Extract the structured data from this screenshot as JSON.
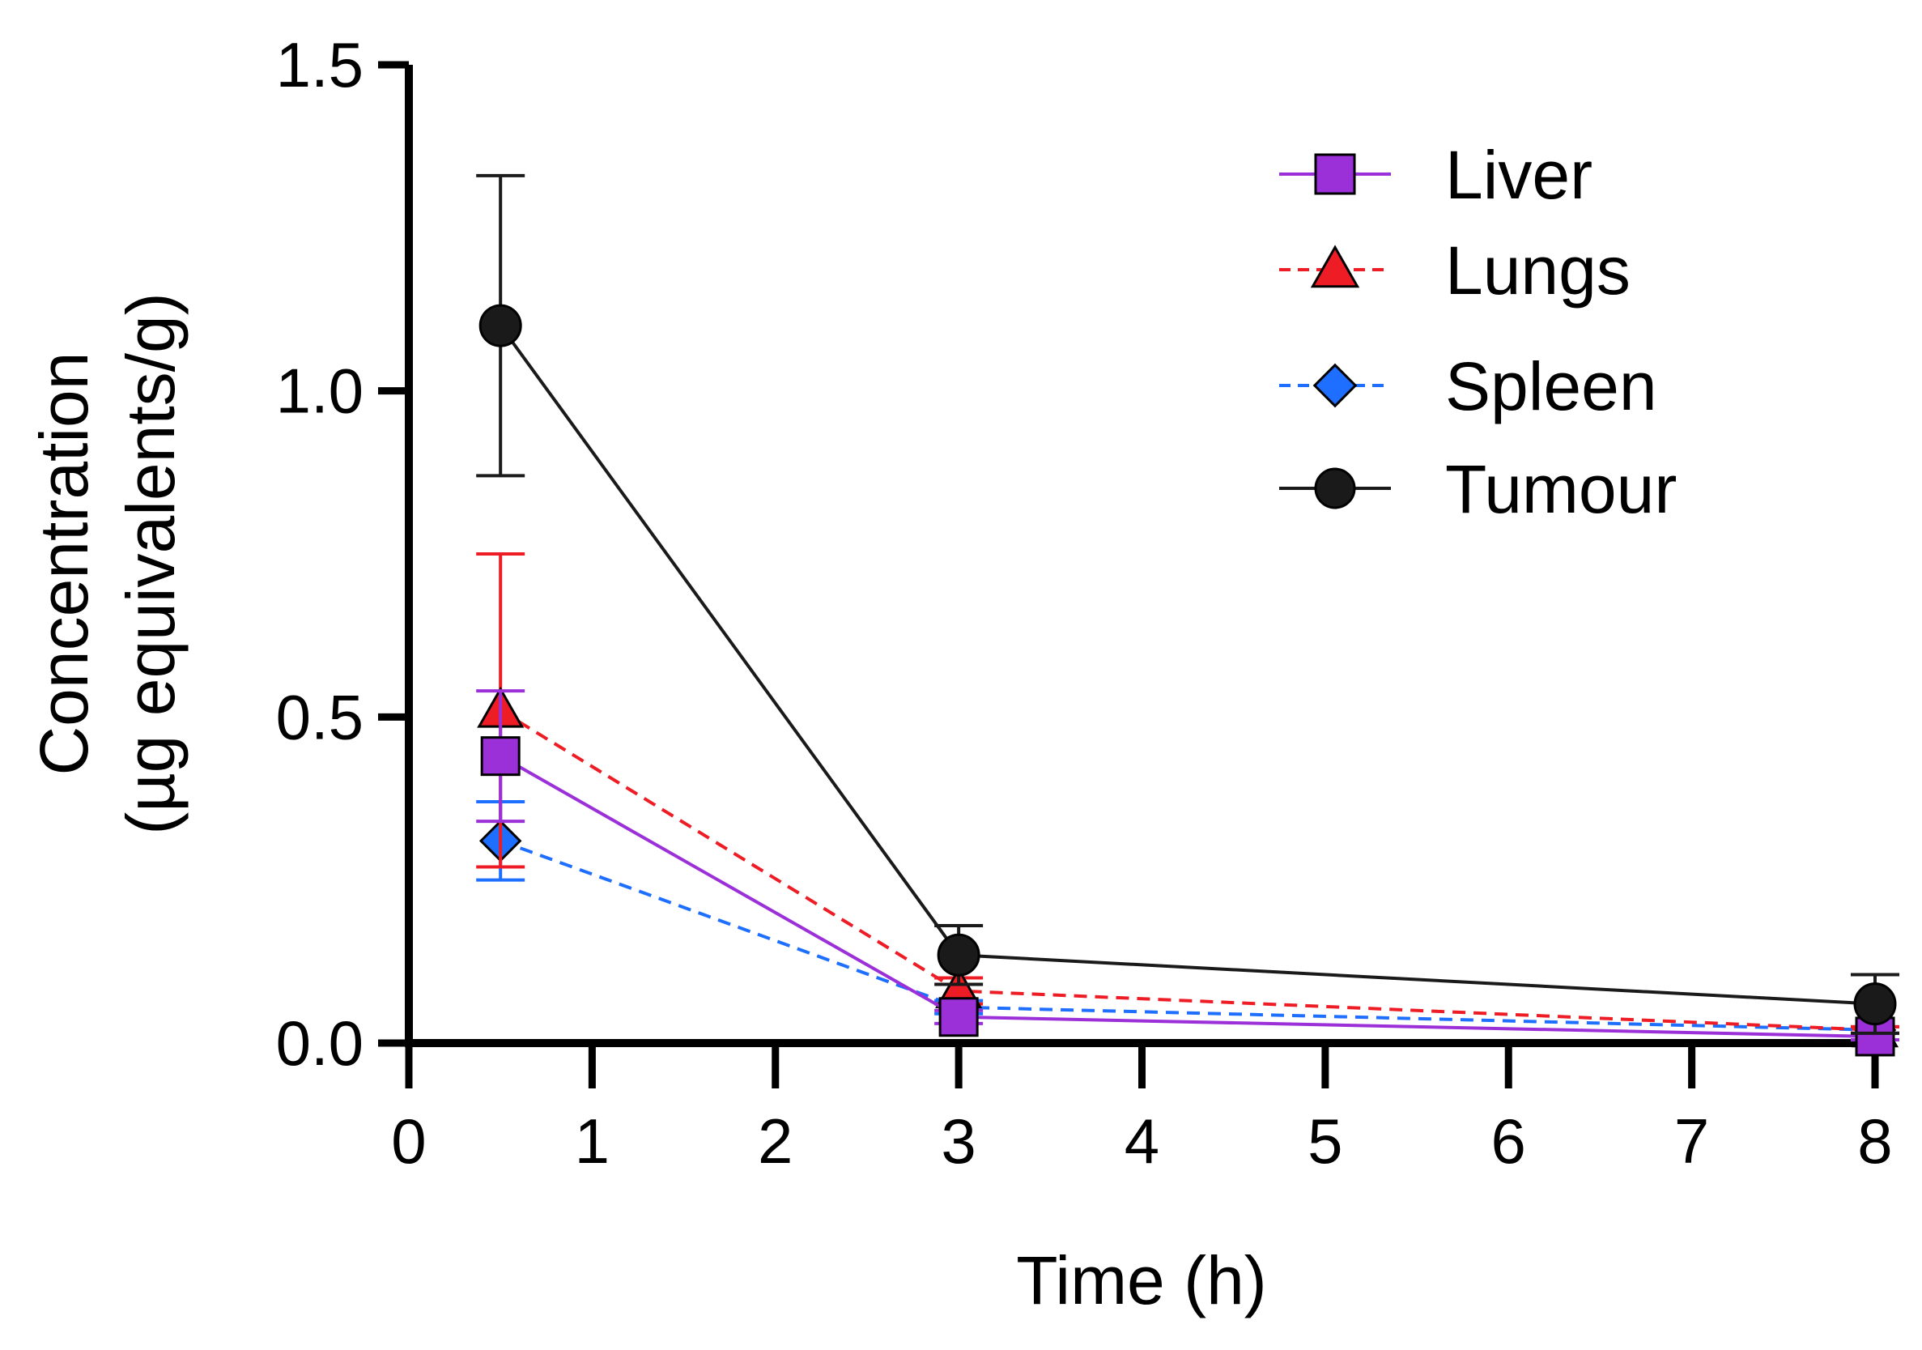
{
  "chart_data": {
    "type": "line",
    "title": "",
    "xlabel": "Time (h)",
    "ylabel_lines": [
      "Concentration",
      "(µg equivalents/g)"
    ],
    "xlim": [
      0,
      8
    ],
    "ylim": [
      0,
      1.5
    ],
    "xticks": [
      0,
      1,
      2,
      3,
      4,
      5,
      6,
      7,
      8
    ],
    "xtick_labels": [
      "0",
      "1",
      "2",
      "3",
      "4",
      "5",
      "6",
      "7",
      "8"
    ],
    "yticks": [
      0,
      0.5,
      1.0,
      1.5
    ],
    "ytick_labels": [
      "0.0",
      "0.5",
      "1.0",
      "1.5"
    ],
    "grid": false,
    "legend_position": "top-right",
    "x": [
      0.5,
      3,
      8
    ],
    "series": [
      {
        "name": "Liver",
        "color": "#9B30D9",
        "marker": "square",
        "dash": false,
        "values": [
          0.44,
          0.04,
          0.01
        ],
        "err": [
          0.1,
          0.01,
          0.005
        ]
      },
      {
        "name": "Lungs",
        "color": "#EE1C25",
        "marker": "triangle",
        "dash": true,
        "values": [
          0.51,
          0.08,
          0.02
        ],
        "err": [
          0.24,
          0.02,
          0.005
        ]
      },
      {
        "name": "Spleen",
        "color": "#1E6FFF",
        "marker": "diamond",
        "dash": true,
        "values": [
          0.31,
          0.055,
          0.02
        ],
        "err": [
          0.06,
          0.01,
          0.005
        ]
      },
      {
        "name": "Tumour",
        "color": "#1a1a1a",
        "marker": "circle",
        "dash": false,
        "values": [
          1.1,
          0.135,
          0.06
        ],
        "err": [
          0.23,
          0.045,
          0.045
        ]
      }
    ]
  }
}
